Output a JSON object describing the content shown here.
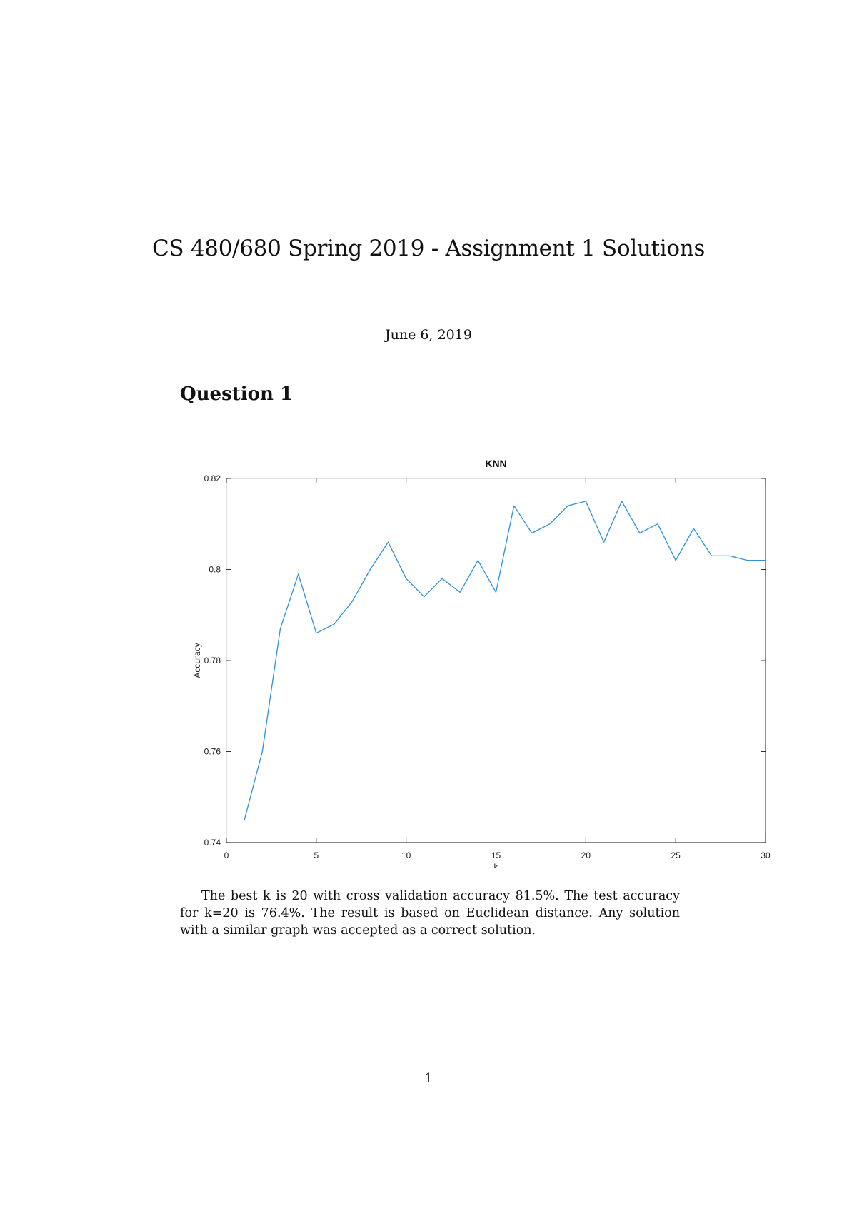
{
  "document": {
    "title": "CS 480/680 Spring 2019 - Assignment 1 Solutions",
    "date": "June 6, 2019",
    "section_heading": "Question 1",
    "paragraph": "The best k is 20 with cross validation accuracy 81.5%. The test accuracy for k=20 is 76.4%. The result is based on Euclidean distance. Any solution with a similar graph was accepted as a correct solution.",
    "page_number": "1"
  },
  "chart_data": {
    "type": "line",
    "title": "KNN",
    "xlabel": "k",
    "ylabel": "Accuracy",
    "xlim": [
      0,
      30
    ],
    "ylim": [
      0.74,
      0.82
    ],
    "xticks": [
      0,
      5,
      10,
      15,
      20,
      25,
      30
    ],
    "xtick_labels": [
      "0",
      "5",
      "10",
      "15",
      "20",
      "25",
      "30"
    ],
    "yticks": [
      0.74,
      0.76,
      0.78,
      0.8,
      0.82
    ],
    "ytick_labels": [
      "0.74",
      "0.76",
      "0.78",
      "0.8",
      "0.82"
    ],
    "grid": false,
    "legend": null,
    "values_estimated": true,
    "series": [
      {
        "name": "Accuracy",
        "color": "#2f8fd8",
        "x": [
          1,
          2,
          3,
          4,
          5,
          6,
          7,
          8,
          9,
          10,
          11,
          12,
          13,
          14,
          15,
          16,
          17,
          18,
          19,
          20,
          21,
          22,
          23,
          24,
          25,
          26,
          27,
          28,
          29,
          30
        ],
        "values": [
          0.745,
          0.76,
          0.787,
          0.799,
          0.786,
          0.788,
          0.793,
          0.8,
          0.806,
          0.798,
          0.794,
          0.798,
          0.795,
          0.802,
          0.795,
          0.814,
          0.808,
          0.81,
          0.814,
          0.815,
          0.806,
          0.815,
          0.808,
          0.81,
          0.802,
          0.809,
          0.803,
          0.803,
          0.802,
          0.802
        ]
      }
    ]
  }
}
